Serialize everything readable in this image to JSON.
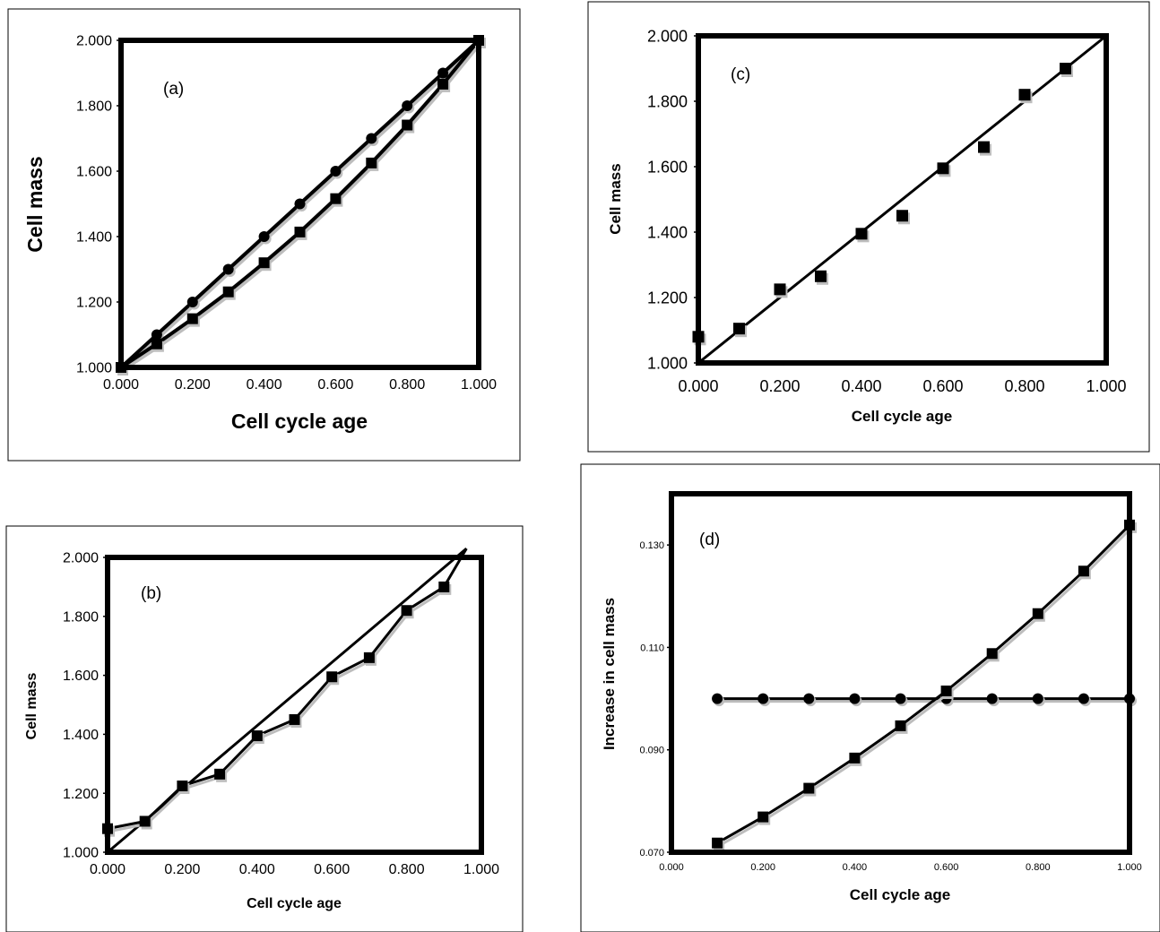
{
  "chart_data": [
    {
      "panel": "(a)",
      "type": "line",
      "xlabel": "Cell cycle age",
      "ylabel": "Cell mass",
      "xlim": [
        0.0,
        1.0
      ],
      "ylim": [
        1.0,
        2.0
      ],
      "xticks": [
        "0.000",
        "0.200",
        "0.400",
        "0.600",
        "0.800",
        "1.000"
      ],
      "yticks": [
        "1.000",
        "1.200",
        "1.400",
        "1.600",
        "1.800",
        "2.000"
      ],
      "x": [
        0.0,
        0.1,
        0.2,
        0.3,
        0.4,
        0.5,
        0.6,
        0.7,
        0.8,
        0.9,
        1.0
      ],
      "series": [
        {
          "marker": "circle",
          "values": [
            1.0,
            1.1,
            1.2,
            1.3,
            1.4,
            1.5,
            1.6,
            1.7,
            1.8,
            1.9,
            2.0
          ]
        },
        {
          "marker": "square",
          "values": [
            1.0,
            1.072,
            1.149,
            1.231,
            1.32,
            1.414,
            1.516,
            1.625,
            1.741,
            1.866,
            2.0
          ]
        }
      ]
    },
    {
      "panel": "(b)",
      "type": "line",
      "xlabel": "Cell cycle age",
      "ylabel": "Cell mass",
      "xlim": [
        0.0,
        1.0
      ],
      "ylim": [
        1.0,
        2.0
      ],
      "xticks": [
        "0.000",
        "0.200",
        "0.400",
        "0.600",
        "0.800",
        "1.000"
      ],
      "yticks": [
        "1.000",
        "1.200",
        "1.400",
        "1.600",
        "1.800",
        "2.000"
      ],
      "x": [
        0.0,
        0.1,
        0.2,
        0.3,
        0.4,
        0.5,
        0.6,
        0.7,
        0.8,
        0.9
      ],
      "series": [
        {
          "marker": "square",
          "connected": true,
          "values": [
            1.08,
            1.105,
            1.225,
            1.265,
            1.395,
            1.45,
            1.595,
            1.66,
            1.82,
            1.9
          ]
        }
      ],
      "fit_lines": [
        {
          "x": [
            0.0,
            0.96
          ],
          "y": [
            1.0,
            2.03
          ]
        },
        {
          "x": [
            0.9,
            0.96
          ],
          "y": [
            1.9,
            2.03
          ]
        }
      ]
    },
    {
      "panel": "(c)",
      "type": "scatter",
      "xlabel": "Cell cycle age",
      "ylabel": "Cell mass",
      "xlim": [
        0.0,
        1.0
      ],
      "ylim": [
        1.0,
        2.0
      ],
      "xticks": [
        "0.000",
        "0.200",
        "0.400",
        "0.600",
        "0.800",
        "1.000"
      ],
      "yticks": [
        "1.000",
        "1.200",
        "1.400",
        "1.600",
        "1.800",
        "2.000"
      ],
      "x": [
        0.0,
        0.1,
        0.2,
        0.3,
        0.4,
        0.5,
        0.6,
        0.7,
        0.8,
        0.9
      ],
      "series": [
        {
          "marker": "square",
          "values": [
            1.08,
            1.105,
            1.225,
            1.265,
            1.395,
            1.45,
            1.595,
            1.66,
            1.82,
            1.9
          ]
        }
      ],
      "fit_lines": [
        {
          "x": [
            0.0,
            1.0
          ],
          "y": [
            1.0,
            2.0
          ]
        }
      ]
    },
    {
      "panel": "(d)",
      "type": "line",
      "xlabel": "Cell cycle age",
      "ylabel": "Increase in cell mass",
      "xlim": [
        0.0,
        1.0
      ],
      "ylim": [
        0.07,
        0.14
      ],
      "xticks": [
        "0.000",
        "0.200",
        "0.400",
        "0.600",
        "0.800",
        "1.000"
      ],
      "yticks": [
        "0.070",
        "0.090",
        "0.110",
        "0.130"
      ],
      "ytick_values": [
        0.07,
        0.09,
        0.11,
        0.13
      ],
      "x": [
        0.1,
        0.2,
        0.3,
        0.4,
        0.5,
        0.6,
        0.7,
        0.8,
        0.9,
        1.0
      ],
      "series": [
        {
          "marker": "circle",
          "values": [
            0.1,
            0.1,
            0.1,
            0.1,
            0.1,
            0.1,
            0.1,
            0.1,
            0.1,
            0.1
          ]
        },
        {
          "marker": "square",
          "values": [
            0.0718,
            0.0769,
            0.0825,
            0.0884,
            0.0947,
            0.1015,
            0.1088,
            0.1166,
            0.1249,
            0.1339
          ]
        }
      ]
    }
  ]
}
